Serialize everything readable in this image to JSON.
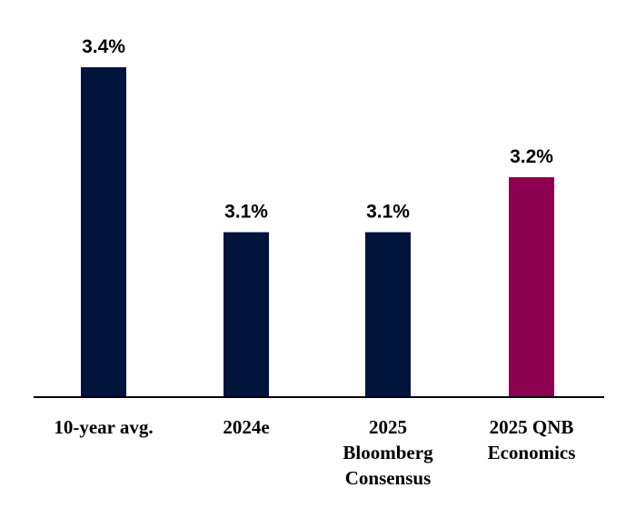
{
  "chart_data": {
    "type": "bar",
    "categories": [
      [
        "10-year avg."
      ],
      [
        "2024e"
      ],
      [
        "2025",
        "Bloomberg",
        "Consensus"
      ],
      [
        "2025 QNB",
        "Economics"
      ]
    ],
    "values": [
      3.4,
      3.1,
      3.1,
      3.2
    ],
    "value_labels": [
      "3.4%",
      "3.1%",
      "3.1%",
      "3.2%"
    ],
    "bar_colors": [
      "#00143c",
      "#00143c",
      "#00143c",
      "#8c0050"
    ],
    "ylim": [
      2.8,
      3.4
    ],
    "title": "",
    "xlabel": "",
    "ylabel": "",
    "grid": false,
    "legend": "none"
  }
}
